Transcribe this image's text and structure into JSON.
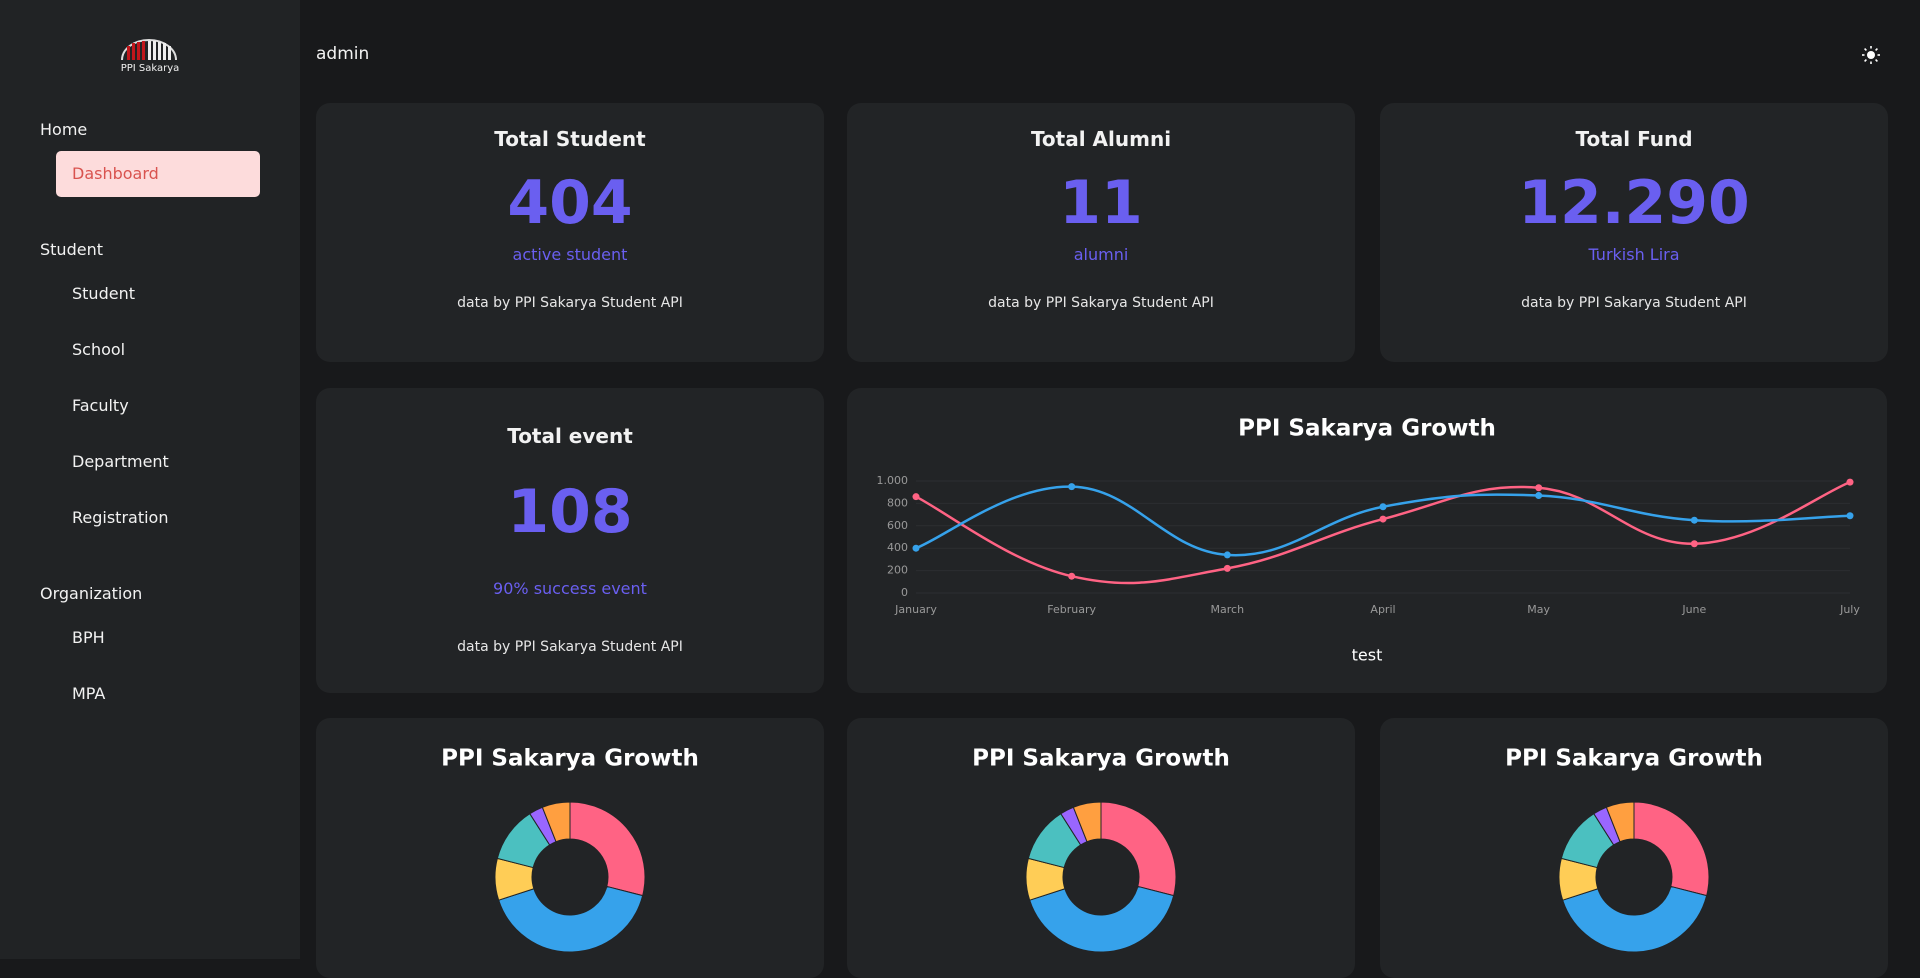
{
  "brand": "PPI Sakarya",
  "header": {
    "user": "admin"
  },
  "sidebar": [
    {
      "title": "Home",
      "items": [
        "Dashboard"
      ]
    },
    {
      "title": "Student",
      "items": [
        "Student",
        "School",
        "Faculty",
        "Department",
        "Registration"
      ]
    },
    {
      "title": "Organization",
      "items": [
        "BPH",
        "MPA"
      ]
    }
  ],
  "stats": [
    {
      "title": "Total Student",
      "value": "404",
      "unit": "active student",
      "source": "data by PPI Sakarya Student API"
    },
    {
      "title": "Total Alumni",
      "value": "11",
      "unit": "alumni",
      "source": "data by PPI Sakarya Student API"
    },
    {
      "title": "Total Fund",
      "value": "12.290",
      "unit": "Turkish Lira",
      "source": "data by PPI Sakarya Student API"
    },
    {
      "title": "Total event",
      "value": "108",
      "unit": "90% success event",
      "source": "data by PPI Sakarya Student API"
    }
  ],
  "chart_data": [
    {
      "type": "line",
      "title": "PPI Sakarya Growth",
      "x_label": "test",
      "categories": [
        "January",
        "February",
        "March",
        "April",
        "May",
        "June",
        "July"
      ],
      "series": [
        {
          "color": "#ff6384",
          "values": [
            860,
            150,
            220,
            660,
            940,
            440,
            990
          ]
        },
        {
          "color": "#36a2eb",
          "values": [
            400,
            950,
            340,
            770,
            870,
            650,
            690
          ]
        }
      ],
      "ylim": [
        0,
        1000
      ],
      "yticks": [
        0,
        200,
        400,
        600,
        800,
        {
          "value": 1000,
          "label": "1.000"
        }
      ],
      "grid": true
    },
    {
      "type": "doughnut",
      "title": "PPI Sakarya Growth",
      "values": [
        29,
        41,
        9,
        12,
        3,
        6
      ],
      "colors": [
        "#ff6384",
        "#36a2eb",
        "#ffcd56",
        "#4bc0c0",
        "#9966ff",
        "#ff9f40"
      ]
    },
    {
      "type": "doughnut",
      "title": "PPI Sakarya Growth",
      "values": [
        29,
        41,
        9,
        12,
        3,
        6
      ],
      "colors": [
        "#ff6384",
        "#36a2eb",
        "#ffcd56",
        "#4bc0c0",
        "#9966ff",
        "#ff9f40"
      ]
    },
    {
      "type": "doughnut",
      "title": "PPI Sakarya Growth",
      "values": [
        29,
        41,
        9,
        12,
        3,
        6
      ],
      "colors": [
        "#ff6384",
        "#36a2eb",
        "#ffcd56",
        "#4bc0c0",
        "#9966ff",
        "#ff9f40"
      ]
    }
  ]
}
